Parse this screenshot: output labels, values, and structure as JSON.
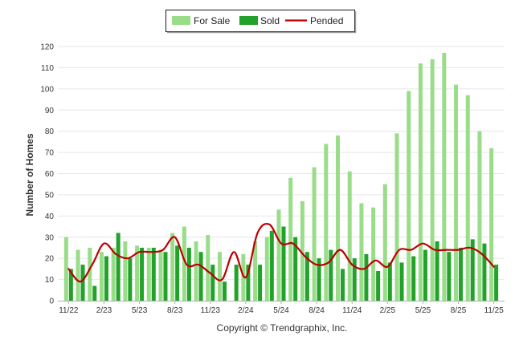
{
  "chart_data": {
    "type": "bar",
    "ylabel": "Number of Homes",
    "ylim": [
      0,
      120
    ],
    "yticks": [
      0,
      10,
      20,
      30,
      40,
      50,
      60,
      70,
      80,
      90,
      100,
      110,
      120
    ],
    "grid": true,
    "legend_position": "top-center",
    "x_tick_labels": [
      "11/22",
      "2/23",
      "5/23",
      "8/23",
      "11/23",
      "2/24",
      "5/24",
      "8/24",
      "11/24",
      "2/25",
      "5/25",
      "8/25",
      "11/25"
    ],
    "categories": [
      "11/22",
      "12/22",
      "1/23",
      "2/23",
      "3/23",
      "4/23",
      "5/23",
      "6/23",
      "7/23",
      "8/23",
      "9/23",
      "10/23",
      "11/23",
      "12/23",
      "1/24",
      "2/24",
      "3/24",
      "4/24",
      "5/24",
      "6/24",
      "7/24",
      "8/24",
      "9/24",
      "10/24",
      "11/24",
      "12/24",
      "1/25",
      "2/25",
      "3/25",
      "4/25",
      "5/25",
      "6/25",
      "7/25",
      "8/25",
      "9/25",
      "10/25",
      "11/25"
    ],
    "series": [
      {
        "name": "For Sale",
        "type": "bar",
        "color": "#99dd88",
        "values": [
          30,
          24,
          25,
          23,
          25,
          28,
          26,
          25,
          24,
          32,
          35,
          28,
          31,
          23,
          0,
          22,
          28,
          30,
          43,
          58,
          47,
          63,
          74,
          78,
          61,
          46,
          44,
          55,
          79,
          99,
          112,
          114,
          117,
          102,
          97,
          80,
          72
        ]
      },
      {
        "name": "Sold",
        "type": "bar",
        "color": "#22a22a",
        "values": [
          15,
          17,
          7,
          21,
          32,
          20,
          25,
          25,
          23,
          26,
          25,
          23,
          17,
          9,
          17,
          17,
          17,
          33,
          35,
          30,
          23,
          20,
          24,
          15,
          20,
          22,
          14,
          18,
          18,
          21,
          24,
          28,
          23,
          25,
          29,
          27,
          17
        ]
      },
      {
        "name": "Pended",
        "type": "line",
        "color": "#bb0000",
        "values": [
          15,
          9,
          17,
          27,
          22,
          20,
          23,
          23,
          24,
          30,
          17,
          17,
          13,
          10,
          23,
          11,
          32,
          36,
          27,
          27,
          21,
          17,
          18,
          24,
          17,
          15,
          19,
          16,
          24,
          24,
          27,
          24,
          24,
          24,
          25,
          22,
          16
        ]
      }
    ]
  },
  "copyright": "Copyright © Trendgraphix, Inc."
}
